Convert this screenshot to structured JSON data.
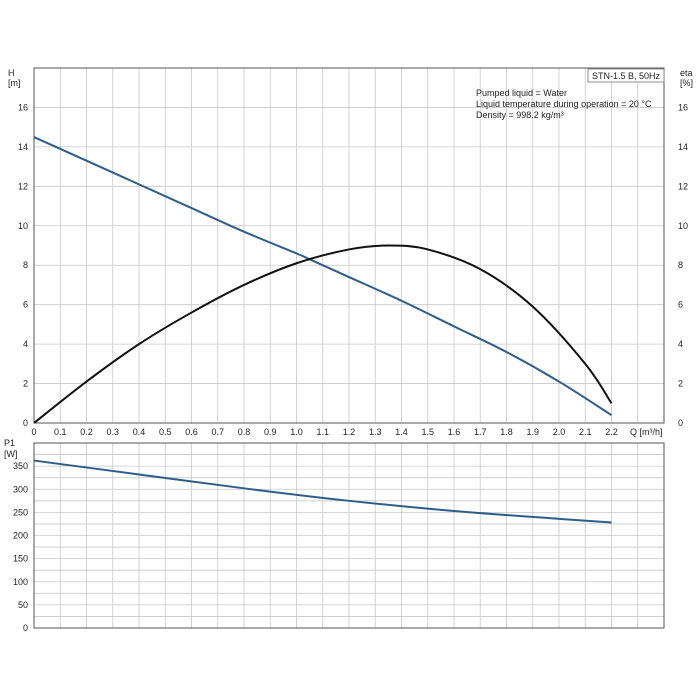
{
  "legend_box": {
    "text": "STN-1.5 B, 50Hz"
  },
  "info": {
    "line1": "Pumped liquid = Water",
    "line2": "Liquid temperature during operation = 20 °C",
    "line3": "Density = 998.2 kg/m³"
  },
  "colors": {
    "head_curve": "#2f5d8a",
    "eta_curve": "#111111",
    "power_curve": "#2f5d8a",
    "grid": "#c8c8c8",
    "frame": "#555555"
  },
  "chart_data": [
    {
      "type": "line",
      "title": "",
      "xlabel": "Q [m³/h]",
      "ylabel": "H\n[m]",
      "y2label": "eta\n[%]",
      "xlim": [
        0,
        2.4
      ],
      "ylim": [
        0,
        18
      ],
      "y2lim": [
        0,
        18
      ],
      "grid": true,
      "x_ticks": [
        "0",
        "0.1",
        "0.2",
        "0.3",
        "0.4",
        "0.5",
        "0.6",
        "0.7",
        "0.8",
        "0.9",
        "1.0",
        "1.1",
        "1.2",
        "1.3",
        "1.4",
        "1.5",
        "1.6",
        "1.7",
        "1.8",
        "1.9",
        "2.0",
        "2.1",
        "2.2"
      ],
      "y_ticks": [
        "0",
        "2",
        "4",
        "6",
        "8",
        "10",
        "12",
        "14",
        "16"
      ],
      "y2_ticks": [
        "0",
        "2",
        "4",
        "6",
        "8",
        "10",
        "12",
        "14",
        "16"
      ],
      "series": [
        {
          "name": "H",
          "axis": "left",
          "x": [
            0,
            0.2,
            0.4,
            0.6,
            0.8,
            1.0,
            1.05,
            1.2,
            1.4,
            1.6,
            1.8,
            2.0,
            2.2
          ],
          "y": [
            14.5,
            13.3,
            12.1,
            10.9,
            9.7,
            8.6,
            8.3,
            7.4,
            6.2,
            4.9,
            3.6,
            2.1,
            0.4
          ]
        },
        {
          "name": "eta",
          "axis": "right",
          "x": [
            0,
            0.2,
            0.4,
            0.6,
            0.8,
            1.0,
            1.2,
            1.35,
            1.5,
            1.7,
            1.9,
            2.1,
            2.2
          ],
          "y": [
            0,
            2.1,
            4.0,
            5.6,
            7.0,
            8.1,
            8.8,
            9.0,
            8.8,
            7.8,
            5.9,
            3.0,
            1.0
          ]
        }
      ]
    },
    {
      "type": "line",
      "title": "",
      "xlabel": "",
      "ylabel": "P1\n[W]",
      "xlim": [
        0,
        2.4
      ],
      "ylim": [
        0,
        400
      ],
      "grid": true,
      "y_ticks": [
        "0",
        "50",
        "100",
        "150",
        "200",
        "250",
        "300",
        "350"
      ],
      "series": [
        {
          "name": "P1",
          "x": [
            0,
            0.4,
            0.8,
            1.2,
            1.6,
            2.0,
            2.2
          ],
          "y": [
            362,
            332,
            302,
            275,
            253,
            236,
            228
          ]
        }
      ]
    }
  ]
}
